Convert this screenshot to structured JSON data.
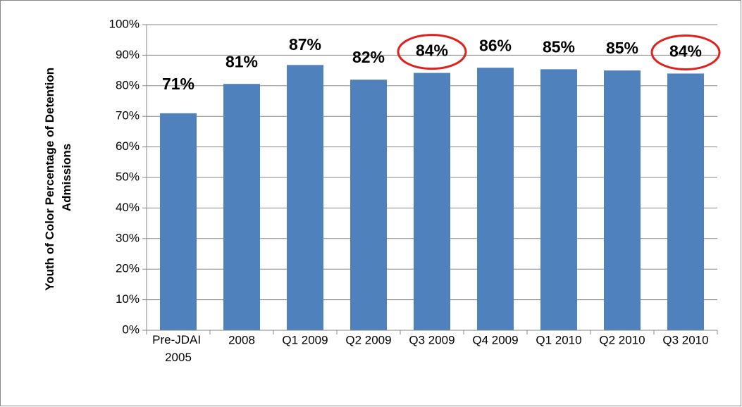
{
  "chart_data": {
    "type": "bar",
    "ylabel": "Youth of Color Percentage of Detention Admissions",
    "categories": [
      "Pre-JDAI 2005",
      "2008",
      "Q1 2009",
      "Q2 2009",
      "Q3 2009",
      "Q4 2009",
      "Q1 2010",
      "Q2 2010",
      "Q3 2010"
    ],
    "values": [
      71,
      80.6,
      86.8,
      82,
      84.2,
      85.9,
      85.4,
      85,
      84
    ],
    "value_labels": [
      "71%",
      "81%",
      "87%",
      "82%",
      "84%",
      "86%",
      "85%",
      "85%",
      "84%"
    ],
    "color": "#4f81bd",
    "ylim": [
      0,
      100
    ],
    "yticks": [
      {
        "value": 0,
        "label": "0%"
      },
      {
        "value": 10,
        "label": "10%"
      },
      {
        "value": 20,
        "label": "20%"
      },
      {
        "value": 30,
        "label": "30%"
      },
      {
        "value": 40,
        "label": "40%"
      },
      {
        "value": 50,
        "label": "50%"
      },
      {
        "value": 60,
        "label": "60%"
      },
      {
        "value": 70,
        "label": "70%"
      },
      {
        "value": 80,
        "label": "80%"
      },
      {
        "value": 90,
        "label": "90%"
      },
      {
        "value": 100,
        "label": "100%"
      }
    ],
    "grid": true,
    "highlighted": [
      "Q3 2009",
      "Q3 2010"
    ],
    "highlight_color": "#e0201c"
  }
}
